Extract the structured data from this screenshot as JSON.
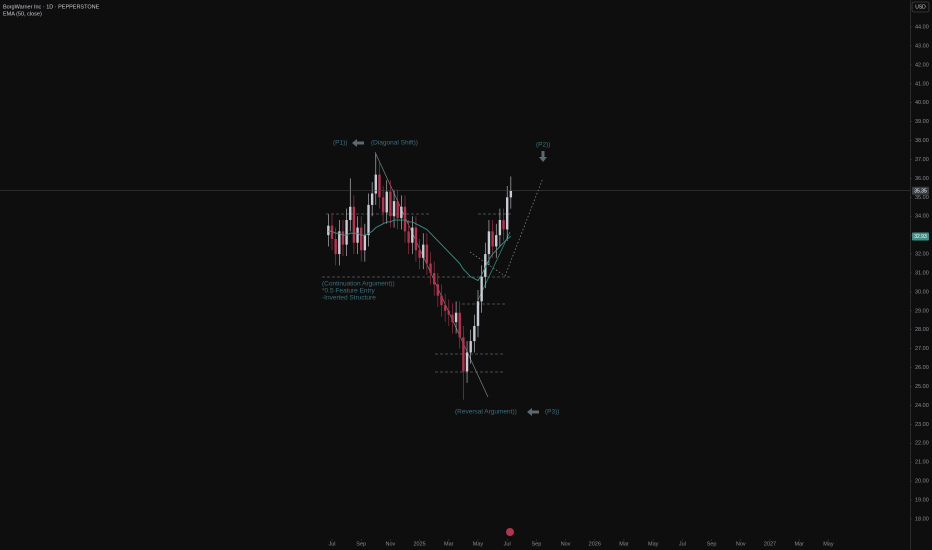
{
  "chart_data": {
    "type": "candlestick",
    "title": "BorgWarner Inc · 1D · PEPPERSTONE",
    "subtitle": "EMA (50, close)",
    "currency": "USD",
    "up_color": "#c9ccd4",
    "down_color": "#b2354f",
    "ema_color": "#3f8f86",
    "xlim": [
      -16.74,
      45.59
    ],
    "ylim": [
      17.15,
      45.43
    ],
    "xticks": [
      {
        "value": 6,
        "label": "Jul"
      },
      {
        "value": 8,
        "label": "Sep"
      },
      {
        "value": 10,
        "label": "Nov"
      },
      {
        "value": 12,
        "label": "2025"
      },
      {
        "value": 14,
        "label": "Mar"
      },
      {
        "value": 16,
        "label": "May"
      },
      {
        "value": 18,
        "label": "Jul"
      },
      {
        "value": 20,
        "label": "Sep"
      },
      {
        "value": 22,
        "label": "Nov"
      },
      {
        "value": 24,
        "label": "2026"
      },
      {
        "value": 26,
        "label": "Mar"
      },
      {
        "value": 28,
        "label": "May"
      },
      {
        "value": 30,
        "label": "Jul"
      },
      {
        "value": 32,
        "label": "Sep"
      },
      {
        "value": 34,
        "label": "Nov"
      },
      {
        "value": 36,
        "label": "2027"
      },
      {
        "value": 38,
        "label": "Mar"
      },
      {
        "value": 40,
        "label": "May"
      }
    ],
    "yticks": [
      {
        "value": 18,
        "label": "18.00"
      },
      {
        "value": 19,
        "label": "19.00"
      },
      {
        "value": 20,
        "label": "20.00"
      },
      {
        "value": 21,
        "label": "21.00"
      },
      {
        "value": 22,
        "label": "22.00"
      },
      {
        "value": 23,
        "label": "23.00"
      },
      {
        "value": 24,
        "label": "24.00"
      },
      {
        "value": 25,
        "label": "25.00"
      },
      {
        "value": 26,
        "label": "26.00"
      },
      {
        "value": 27,
        "label": "27.00"
      },
      {
        "value": 28,
        "label": "28.00"
      },
      {
        "value": 29,
        "label": "29.00"
      },
      {
        "value": 30,
        "label": "30.00"
      },
      {
        "value": 31,
        "label": "31.00"
      },
      {
        "value": 32,
        "label": "32.00"
      },
      {
        "value": 33,
        "label": "33.00"
      },
      {
        "value": 34,
        "label": "34.00"
      },
      {
        "value": 35,
        "label": "35.00"
      },
      {
        "value": 36,
        "label": "36.00"
      },
      {
        "value": 37,
        "label": "37.00"
      },
      {
        "value": 38,
        "label": "38.00"
      },
      {
        "value": 39,
        "label": "39.00"
      },
      {
        "value": 40,
        "label": "40.00"
      },
      {
        "value": 41,
        "label": "41.00"
      },
      {
        "value": 42,
        "label": "42.00"
      },
      {
        "value": 43,
        "label": "43.00"
      },
      {
        "value": 44,
        "label": "44.00"
      }
    ],
    "x": [
      5.75,
      6.0,
      6.25,
      6.5,
      6.75,
      7.0,
      7.25,
      7.5,
      7.75,
      8.0,
      8.25,
      8.5,
      8.75,
      9.0,
      9.25,
      9.5,
      9.75,
      10.0,
      10.25,
      10.5,
      10.75,
      11.0,
      11.25,
      11.5,
      11.75,
      12.0,
      12.25,
      12.5,
      12.75,
      13.0,
      13.25,
      13.5,
      13.75,
      14.0,
      14.25,
      14.5,
      14.75,
      15.0,
      15.25,
      15.5,
      15.75,
      16.0,
      16.25,
      16.5,
      16.75,
      17.0,
      17.25,
      17.5,
      17.75,
      18.0,
      18.25
    ],
    "open": [
      33.0,
      33.5,
      32.8,
      32.0,
      33.2,
      32.5,
      33.8,
      34.5,
      32.6,
      33.4,
      32.2,
      33.0,
      34.6,
      35.2,
      36.2,
      35.0,
      34.2,
      35.3,
      34.0,
      34.8,
      33.9,
      34.5,
      33.2,
      32.6,
      33.4,
      32.2,
      31.8,
      32.5,
      31.5,
      31.0,
      30.4,
      29.8,
      29.3,
      29.0,
      28.8,
      28.4,
      28.9,
      27.6,
      25.8,
      26.8,
      27.4,
      28.2,
      29.5,
      30.8,
      32.0,
      33.2,
      32.4,
      33.0,
      33.8,
      33.3,
      35.0
    ],
    "high": [
      34.1,
      34.1,
      33.4,
      33.8,
      33.8,
      34.4,
      36.0,
      35.1,
      34.0,
      34.0,
      33.6,
      35.2,
      35.8,
      37.3,
      36.8,
      35.6,
      35.9,
      35.9,
      35.4,
      35.4,
      35.1,
      35.1,
      33.8,
      34.0,
      34.0,
      32.8,
      33.1,
      33.1,
      32.1,
      31.6,
      31.0,
      30.4,
      29.9,
      29.6,
      29.4,
      29.5,
      29.5,
      28.2,
      27.4,
      28.0,
      28.8,
      30.1,
      31.4,
      32.6,
      33.8,
      33.8,
      33.6,
      34.4,
      34.4,
      35.6,
      36.1
    ],
    "low": [
      32.4,
      32.2,
      31.4,
      31.4,
      31.9,
      31.9,
      33.2,
      32.0,
      32.0,
      31.6,
      31.6,
      32.4,
      34.0,
      34.6,
      34.4,
      33.6,
      33.6,
      33.4,
      33.4,
      33.3,
      33.3,
      32.6,
      32.0,
      32.0,
      31.6,
      31.2,
      31.2,
      30.9,
      30.4,
      29.8,
      29.2,
      28.7,
      28.4,
      28.2,
      27.8,
      27.8,
      27.0,
      24.3,
      25.2,
      26.2,
      26.8,
      27.6,
      28.9,
      30.2,
      31.4,
      31.8,
      31.8,
      32.4,
      32.7,
      32.7,
      34.4
    ],
    "close": [
      33.5,
      32.8,
      32.0,
      33.2,
      32.5,
      33.8,
      34.5,
      32.6,
      33.4,
      32.2,
      33.0,
      34.6,
      35.2,
      36.2,
      35.0,
      34.2,
      35.3,
      34.0,
      34.8,
      33.9,
      34.5,
      33.2,
      32.6,
      33.4,
      32.2,
      31.8,
      32.5,
      31.5,
      31.0,
      30.4,
      29.8,
      29.3,
      29.0,
      28.8,
      28.4,
      28.9,
      27.6,
      25.8,
      26.8,
      27.4,
      28.2,
      29.5,
      30.8,
      32.0,
      33.2,
      32.4,
      33.0,
      33.8,
      33.3,
      35.0,
      35.35
    ],
    "ema": [
      33.2,
      33.2,
      33.1,
      33.1,
      33.0,
      33.0,
      33.1,
      33.1,
      33.1,
      33.0,
      33.0,
      33.1,
      33.2,
      33.4,
      33.5,
      33.6,
      33.7,
      33.7,
      33.8,
      33.8,
      33.8,
      33.8,
      33.7,
      33.7,
      33.6,
      33.5,
      33.4,
      33.3,
      33.1,
      32.9,
      32.7,
      32.5,
      32.3,
      32.1,
      31.9,
      31.7,
      31.5,
      31.2,
      31.0,
      30.8,
      30.7,
      30.6,
      30.9,
      31.3,
      31.7,
      32.0,
      32.2,
      32.4,
      32.6,
      32.8,
      32.93
    ],
    "price_labels": [
      {
        "value": 35.35,
        "label": "35.35"
      },
      {
        "value": 32.93,
        "label": "32.93"
      }
    ],
    "annotations": [
      "(P1))",
      "(Diagonal Shift))",
      "(P2))",
      "(Continuation Argument))",
      "*0.5 Feature Entry",
      "-Inverted Structure",
      "(Reversal Argument))",
      "(P3))"
    ]
  }
}
